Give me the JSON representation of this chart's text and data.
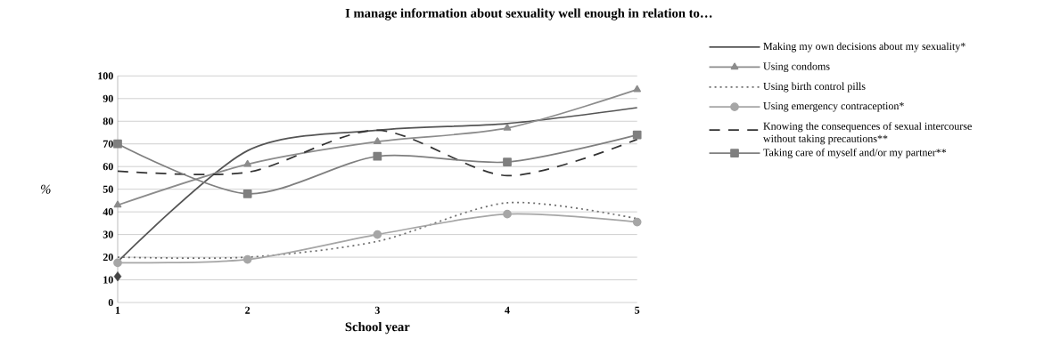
{
  "chart_data": {
    "type": "line",
    "title": "I manage information about sexuality well enough in relation to…",
    "xlabel": "School year",
    "ylabel": "%",
    "categories": [
      "1",
      "2",
      "3",
      "4",
      "5"
    ],
    "ylim": [
      0,
      100
    ],
    "yticks": [
      0,
      10,
      20,
      30,
      40,
      50,
      60,
      70,
      80,
      90,
      100
    ],
    "grid": "y",
    "legend": "right",
    "series": [
      {
        "name": "Making my own decisions about my sexuality*",
        "color": "#555555",
        "values": [
          18,
          67,
          76,
          79,
          86
        ],
        "marker": "none",
        "line_style": "solid"
      },
      {
        "name": "Using condoms",
        "color": "#8c8c8c",
        "values": [
          43,
          61,
          71,
          77,
          94
        ],
        "marker": "triangle",
        "line_style": "solid"
      },
      {
        "name": "Using birth control pills",
        "color": "#6e6e6e",
        "values": [
          20,
          20,
          27,
          44,
          37
        ],
        "marker": "none",
        "line_style": "dotted"
      },
      {
        "name": "Using emergency contraception*",
        "color": "#a6a6a6",
        "values": [
          17.5,
          19,
          30,
          39,
          35.5
        ],
        "marker": "circle",
        "line_style": "solid"
      },
      {
        "name": "Knowing the consequences of sexual intercourse without taking precautions**",
        "color": "#333333",
        "values": [
          58,
          57.5,
          76,
          56,
          72
        ],
        "marker": "none",
        "line_style": "dashed"
      },
      {
        "name": "Taking care of myself and/or my partner**",
        "color": "#7f7f7f",
        "values": [
          70,
          48,
          64.5,
          62,
          74
        ],
        "marker": "square",
        "line_style": "solid"
      },
      {
        "type": "scatter",
        "color": "#444444",
        "values": [
          11.5,
          null,
          null,
          null,
          null
        ],
        "marker": "diamond"
      }
    ]
  }
}
